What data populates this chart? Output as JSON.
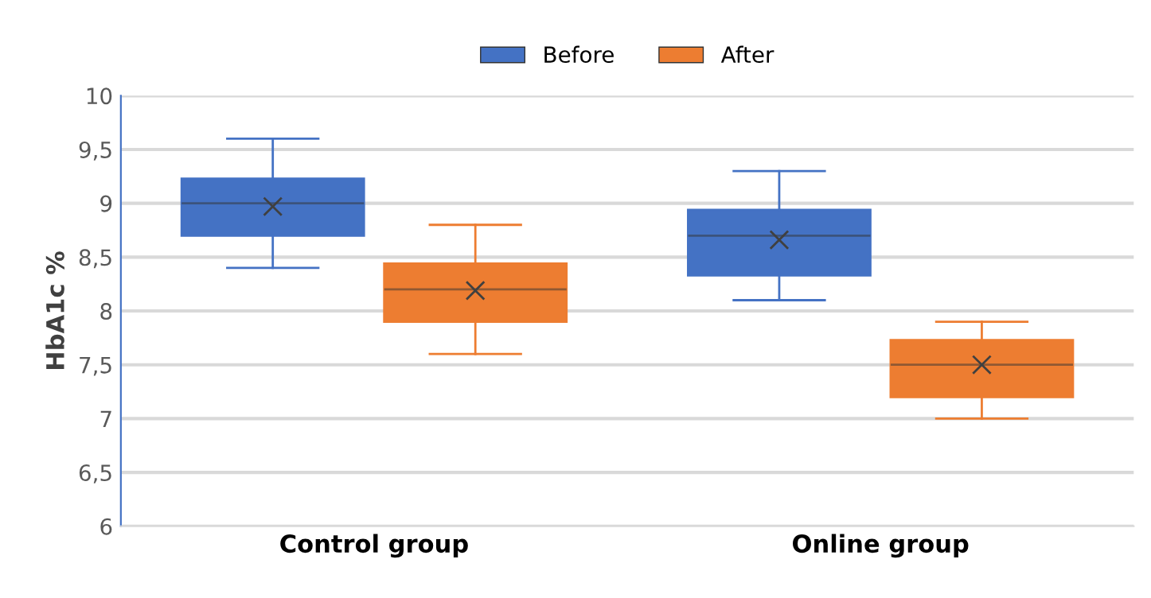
{
  "chart_data": {
    "type": "box",
    "ylabel": "HbA1c %",
    "categories": [
      "Control group",
      "Online group"
    ],
    "series": [
      {
        "name": "Before",
        "color": "#4472c4",
        "boxes": [
          {
            "low": 8.4,
            "q1": 8.7,
            "median": 9.0,
            "q3": 9.23,
            "high": 9.6,
            "mean": 8.97
          },
          {
            "low": 8.1,
            "q1": 8.33,
            "median": 8.7,
            "q3": 8.94,
            "high": 9.3,
            "mean": 8.66
          }
        ]
      },
      {
        "name": "After",
        "color": "#ed7d31",
        "boxes": [
          {
            "low": 7.6,
            "q1": 7.9,
            "median": 8.2,
            "q3": 8.44,
            "high": 8.8,
            "mean": 8.19
          },
          {
            "low": 7.0,
            "q1": 7.2,
            "median": 7.5,
            "q3": 7.73,
            "high": 7.9,
            "mean": 7.5
          }
        ]
      }
    ],
    "ylim": [
      6,
      10
    ],
    "yticks": [
      {
        "value": 6,
        "label": "6"
      },
      {
        "value": 6.5,
        "label": "6,5"
      },
      {
        "value": 7,
        "label": "7"
      },
      {
        "value": 7.5,
        "label": "7,5"
      },
      {
        "value": 8,
        "label": "8"
      },
      {
        "value": 8.5,
        "label": "8,5"
      },
      {
        "value": 9,
        "label": "9"
      },
      {
        "value": 9.5,
        "label": "9,5"
      },
      {
        "value": 10,
        "label": "10"
      }
    ],
    "grid": "y",
    "legend": "top"
  }
}
